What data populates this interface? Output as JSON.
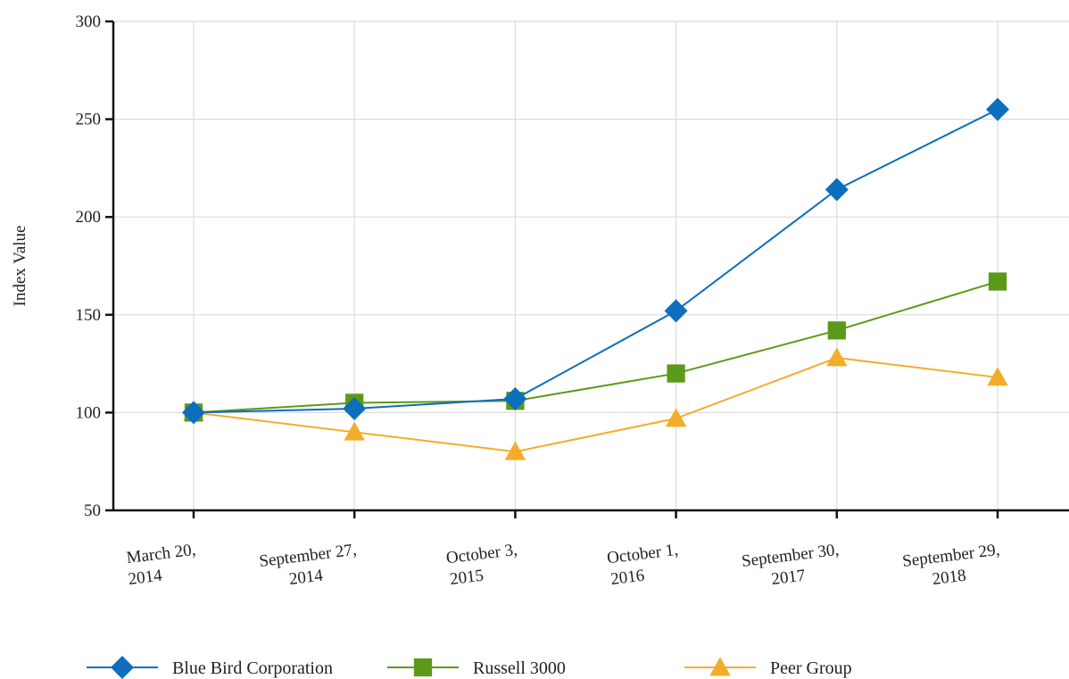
{
  "chart_data": {
    "type": "line",
    "title": "",
    "ylabel": "Index Value",
    "xlabel": "",
    "ylim": [
      50,
      300
    ],
    "yticks": [
      50,
      100,
      150,
      200,
      250,
      300
    ],
    "categories": [
      [
        "March 20,",
        "2014"
      ],
      [
        "September 27,",
        "2014"
      ],
      [
        "October 3,",
        "2015"
      ],
      [
        "October 1,",
        "2016"
      ],
      [
        "September 30,",
        "2017"
      ],
      [
        "September 29,",
        "2018"
      ]
    ],
    "grid": true,
    "legend_position": "bottom",
    "series": [
      {
        "name": "Blue Bird Corporation",
        "values": [
          100,
          102,
          107,
          152,
          214,
          255
        ],
        "color": "#0c6ebd",
        "marker": "diamond"
      },
      {
        "name": "Russell 3000",
        "values": [
          100,
          105,
          106,
          120,
          142,
          167
        ],
        "color": "#5b9a18",
        "marker": "square"
      },
      {
        "name": "Peer Group",
        "values": [
          100,
          90,
          80,
          97,
          128,
          118
        ],
        "color": "#f3ad2a",
        "marker": "triangle"
      }
    ]
  }
}
